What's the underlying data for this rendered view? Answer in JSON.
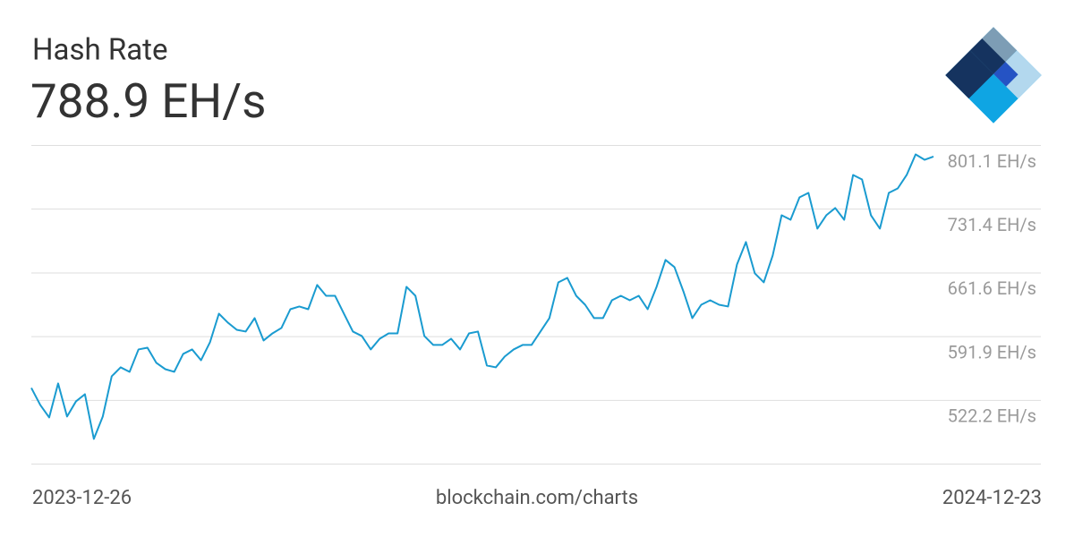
{
  "chart_data": {
    "type": "line",
    "title": "Hash Rate",
    "subtitle": "788.9 EH/s",
    "start_label": "2023-12-26",
    "end_label": "2024-12-23",
    "source": "blockchain.com/charts",
    "color": "#1a9bd0",
    "grid": true,
    "ylim": [
      452.5,
      801.1
    ],
    "yticks": [
      {
        "value": 801.1,
        "label": "801.1 EH/s"
      },
      {
        "value": 731.4,
        "label": "731.4 EH/s"
      },
      {
        "value": 661.6,
        "label": "661.6 EH/s"
      },
      {
        "value": 591.9,
        "label": "591.9 EH/s"
      },
      {
        "value": 522.2,
        "label": "522.2 EH/s"
      }
    ],
    "values": [
      535.8,
      517.2,
      503.5,
      540.7,
      504.5,
      521.1,
      528.9,
      480.0,
      504.5,
      548.5,
      558.3,
      553.4,
      577.9,
      579.8,
      563.2,
      556.3,
      553.4,
      573.0,
      577.9,
      566.1,
      585.7,
      617.0,
      607.3,
      599.4,
      597.5,
      612.2,
      587.7,
      595.5,
      601.4,
      621.9,
      624.9,
      621.9,
      648.4,
      636.6,
      636.6,
      617.0,
      597.5,
      592.6,
      577.9,
      589.6,
      595.5,
      595.5,
      646.4,
      636.6,
      592.6,
      582.8,
      582.8,
      589.6,
      577.9,
      595.5,
      597.5,
      560.3,
      558.3,
      570.1,
      577.9,
      582.8,
      582.8,
      597.5,
      612.2,
      651.3,
      656.2,
      636.6,
      626.8,
      612.2,
      612.2,
      631.7,
      636.6,
      631.7,
      636.6,
      621.9,
      646.4,
      675.8,
      668.0,
      641.5,
      612.2,
      626.8,
      631.7,
      626.8,
      624.9,
      670.9,
      695.4,
      661.1,
      651.3,
      680.7,
      724.7,
      719.8,
      744.3,
      749.2,
      710.1,
      724.7,
      732.6,
      719.8,
      768.8,
      763.9,
      724.7,
      710.1,
      749.2,
      754.1,
      768.8,
      791.3,
      785.4,
      788.9
    ]
  }
}
